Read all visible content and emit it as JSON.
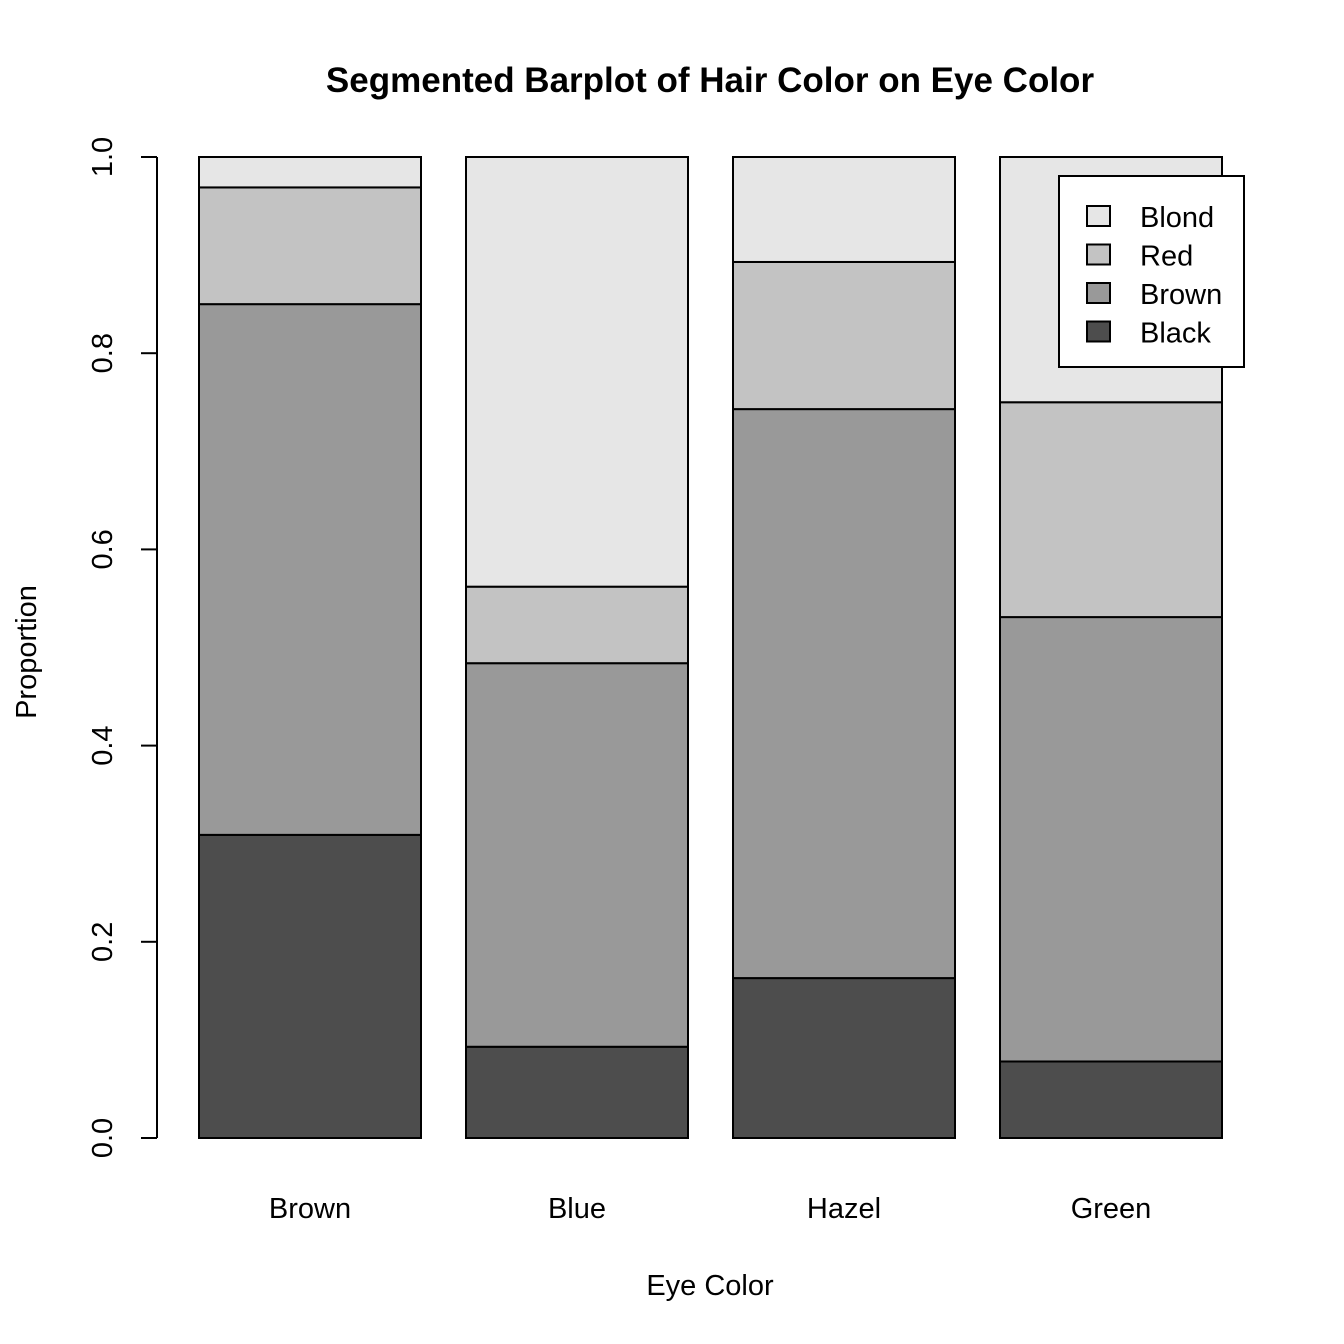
{
  "chart_data": {
    "type": "bar",
    "stacked": true,
    "title": "Segmented Barplot of Hair Color on Eye Color",
    "xlabel": "Eye Color",
    "ylabel": "Proportion",
    "ylim": [
      0,
      1
    ],
    "yticks": [
      "0.0",
      "0.2",
      "0.4",
      "0.6",
      "0.8",
      "1.0"
    ],
    "categories": [
      "Brown",
      "Blue",
      "Hazel",
      "Green"
    ],
    "series": [
      {
        "name": "Black",
        "color": "#4d4d4d",
        "values": [
          0.309,
          0.093,
          0.163,
          0.078
        ]
      },
      {
        "name": "Brown",
        "color": "#999999",
        "values": [
          0.541,
          0.391,
          0.58,
          0.453
        ]
      },
      {
        "name": "Red",
        "color": "#c3c3c3",
        "values": [
          0.119,
          0.078,
          0.15,
          0.219
        ]
      },
      {
        "name": "Blond",
        "color": "#e6e6e6",
        "values": [
          0.031,
          0.438,
          0.107,
          0.25
        ]
      }
    ],
    "legend": {
      "placement": "top-right",
      "entries": [
        "Blond",
        "Red",
        "Brown",
        "Black"
      ]
    },
    "grid": false
  }
}
